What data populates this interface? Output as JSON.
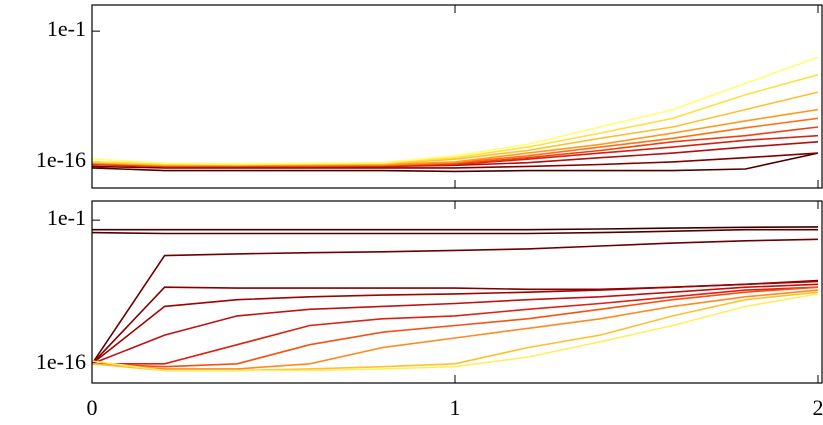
{
  "chart_data": [
    {
      "type": "line",
      "log_y": true,
      "x": [
        0,
        0.2,
        0.4,
        0.6,
        0.8,
        1.0,
        1.2,
        1.4,
        1.6,
        1.8,
        2.0
      ],
      "xlim": [
        0,
        2
      ],
      "ylim": [
        1e-19,
        100
      ],
      "yticks": [
        {
          "value": 0.1,
          "label": "1e-1"
        },
        {
          "value": 1e-16,
          "label": "1e-16"
        }
      ],
      "series": [
        {
          "color": "#4a0000",
          "values": [
            2e-17,
            1e-17,
            1e-17,
            1e-17,
            1e-17,
            8e-18,
            1e-17,
            1e-17,
            1e-17,
            1.5e-17,
            1e-15
          ]
        },
        {
          "color": "#800000",
          "values": [
            3e-17,
            2e-17,
            2e-17,
            2e-17,
            2e-17,
            2e-17,
            3e-17,
            5e-17,
            1e-16,
            3e-16,
            1e-15
          ]
        },
        {
          "color": "#b01010",
          "values": [
            5e-17,
            3e-17,
            3e-17,
            3e-17,
            3e-17,
            4e-17,
            8e-17,
            3e-16,
            1e-15,
            5e-15,
            2e-14
          ]
        },
        {
          "color": "#d82010",
          "values": [
            5e-17,
            3e-17,
            3e-17,
            3e-17,
            3e-17,
            5e-17,
            2e-16,
            1e-15,
            5e-15,
            3e-14,
            1e-13
          ]
        },
        {
          "color": "#f04010",
          "values": [
            6e-17,
            3e-17,
            3e-17,
            3e-17,
            4e-17,
            6e-17,
            3e-16,
            2e-15,
            2e-14,
            1e-13,
            1e-12
          ]
        },
        {
          "color": "#ff7010",
          "values": [
            7e-17,
            4e-17,
            4e-17,
            4e-17,
            4e-17,
            8e-17,
            5e-16,
            5e-15,
            5e-14,
            8e-13,
            1e-11
          ]
        },
        {
          "color": "#ff9a20",
          "values": [
            8e-17,
            4e-17,
            4e-17,
            5e-17,
            5e-17,
            1e-16,
            1e-15,
            1e-14,
            2e-13,
            5e-12,
            1e-10
          ]
        },
        {
          "color": "#ffc030",
          "values": [
            1e-16,
            5e-17,
            5e-17,
            5e-17,
            6e-17,
            2e-16,
            2e-15,
            5e-14,
            1e-12,
            1e-10,
            1e-08
          ]
        },
        {
          "color": "#ffe040",
          "values": [
            1e-16,
            6e-17,
            5e-17,
            6e-17,
            7e-17,
            3e-16,
            5e-15,
            2e-13,
            1e-11,
            5e-09,
            1e-06
          ]
        },
        {
          "color": "#ffff70",
          "values": [
            2e-16,
            7e-17,
            6e-17,
            7e-17,
            8e-17,
            5e-16,
            1e-14,
            1e-12,
            1e-10,
            1e-07,
            0.0001
          ]
        }
      ]
    },
    {
      "type": "line",
      "log_y": true,
      "x": [
        0,
        0.2,
        0.4,
        0.6,
        0.8,
        1.0,
        1.2,
        1.4,
        1.6,
        1.8,
        2.0
      ],
      "xlim": [
        0,
        2
      ],
      "ylim": [
        1e-18,
        10
      ],
      "xticks": [
        0,
        1,
        2
      ],
      "yticks": [
        {
          "value": 0.1,
          "label": "1e-1"
        },
        {
          "value": 1e-16,
          "label": "1e-16"
        }
      ],
      "series": [
        {
          "color": "#3a0000",
          "values": [
            0.01,
            0.01,
            0.01,
            0.01,
            0.01,
            0.01,
            0.01,
            0.012,
            0.015,
            0.018,
            0.02
          ]
        },
        {
          "color": "#500000",
          "values": [
            0.005,
            0.004,
            0.004,
            0.004,
            0.004,
            0.004,
            0.004,
            0.005,
            0.007,
            0.01,
            0.01
          ]
        },
        {
          "color": "#6a0000",
          "values": [
            1e-16,
            2e-05,
            3e-05,
            4e-05,
            5e-05,
            7e-05,
            0.0001,
            0.0002,
            0.0004,
            0.0007,
            0.001
          ]
        },
        {
          "color": "#800000",
          "values": [
            1e-16,
            1e-08,
            8e-09,
            8e-09,
            8e-09,
            8e-09,
            6e-09,
            6e-09,
            1e-08,
            2e-08,
            5e-08
          ]
        },
        {
          "color": "#a00000",
          "values": [
            1e-16,
            1e-10,
            5e-10,
            1e-09,
            1.5e-09,
            2e-09,
            3e-09,
            5e-09,
            1e-08,
            2e-08,
            4e-08
          ]
        },
        {
          "color": "#c01010",
          "values": [
            1e-16,
            1e-13,
            1e-11,
            5e-11,
            1e-10,
            2e-10,
            5e-10,
            1e-09,
            3e-09,
            1e-08,
            2e-08
          ]
        },
        {
          "color": "#e02010",
          "values": [
            1e-16,
            1e-16,
            1e-14,
            1e-12,
            5e-12,
            1e-11,
            5e-11,
            2e-10,
            1e-09,
            5e-09,
            1e-08
          ]
        },
        {
          "color": "#f85010",
          "values": [
            1e-16,
            5e-17,
            1e-16,
            1e-14,
            2e-13,
            1e-12,
            5e-12,
            5e-11,
            5e-10,
            3e-09,
            1e-08
          ]
        },
        {
          "color": "#ff8a20",
          "values": [
            1e-16,
            3e-17,
            3e-17,
            1e-16,
            5e-15,
            5e-14,
            5e-13,
            5e-12,
            1e-10,
            1e-09,
            5e-09
          ]
        },
        {
          "color": "#ffc030",
          "values": [
            1e-16,
            2e-17,
            2e-17,
            3e-17,
            5e-17,
            1e-16,
            5e-15,
            1e-13,
            1e-11,
            5e-10,
            3e-09
          ]
        },
        {
          "color": "#ffef60",
          "values": [
            2e-16,
            2e-17,
            2e-17,
            2e-17,
            3e-17,
            5e-17,
            5e-16,
            2e-14,
            1e-12,
            1e-10,
            2e-09
          ]
        }
      ]
    }
  ]
}
